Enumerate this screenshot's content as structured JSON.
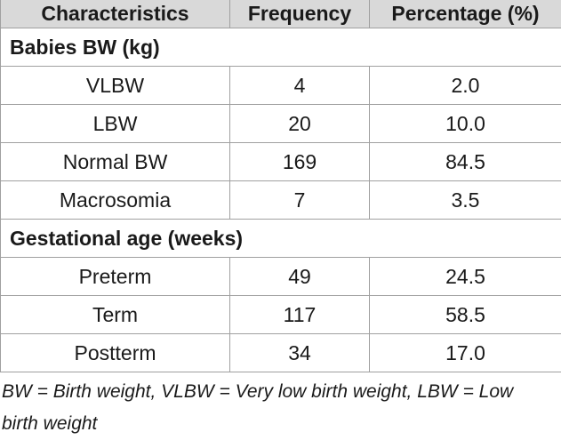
{
  "table": {
    "header": [
      "Characteristics",
      "Frequency",
      "Percentage (%)"
    ],
    "sections": [
      {
        "title": "Babies BW (kg)",
        "rows": [
          [
            "VLBW",
            "4",
            "2.0"
          ],
          [
            "LBW",
            "20",
            "10.0"
          ],
          [
            "Normal BW",
            "169",
            "84.5"
          ],
          [
            "Macrosomia",
            "7",
            "3.5"
          ]
        ]
      },
      {
        "title": "Gestational age (weeks)",
        "rows": [
          [
            "Preterm",
            "49",
            "24.5"
          ],
          [
            "Term",
            "117",
            "58.5"
          ],
          [
            "Postterm",
            "34",
            "17.0"
          ]
        ]
      }
    ]
  },
  "footnote": "BW = Birth weight, VLBW = Very low birth weight, LBW = Low birth weight"
}
